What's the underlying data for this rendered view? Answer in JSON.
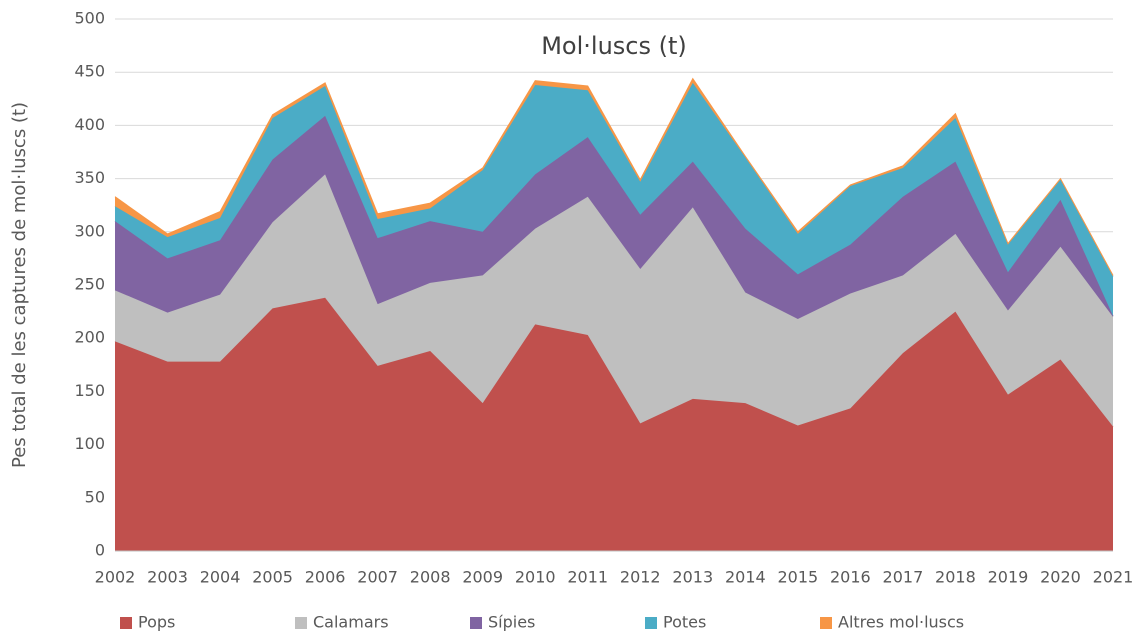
{
  "chart_data": {
    "type": "stacked_area",
    "title": "Mol·luscs (t)",
    "y_label": "Pes total de les captures de mol·luscs (t)",
    "categories": [
      "2002",
      "2003",
      "2004",
      "2005",
      "2006",
      "2007",
      "2008",
      "2009",
      "2010",
      "2011",
      "2012",
      "2013",
      "2014",
      "2015",
      "2016",
      "2017",
      "2018",
      "2019",
      "2020",
      "2021"
    ],
    "series": [
      {
        "name": "Pops",
        "color": "#c0504d",
        "values": [
          197,
          178,
          178,
          228,
          238,
          174,
          188,
          139,
          213,
          203,
          120,
          143,
          139,
          118,
          134,
          186,
          225,
          147,
          180,
          117
        ]
      },
      {
        "name": "Calamars",
        "color": "#bfbfbf",
        "values": [
          48,
          46,
          63,
          81,
          116,
          58,
          64,
          120,
          90,
          130,
          145,
          180,
          104,
          100,
          108,
          73,
          73,
          79,
          106,
          103
        ]
      },
      {
        "name": "Sípies",
        "color": "#8064a2",
        "values": [
          65,
          51,
          51,
          59,
          55,
          62,
          58,
          41,
          51,
          56,
          51,
          43,
          60,
          42,
          46,
          74,
          68,
          36,
          44,
          1
        ]
      },
      {
        "name": "Potes",
        "color": "#4bacc6",
        "values": [
          14,
          20,
          21,
          39,
          28,
          18,
          12,
          58,
          84,
          44,
          31,
          74,
          67,
          38,
          55,
          27,
          41,
          26,
          19,
          37
        ]
      },
      {
        "name": "Altres mol·luscs",
        "color": "#f79646",
        "values": [
          9,
          3,
          6,
          3,
          3,
          5,
          5,
          2,
          4,
          4,
          2,
          4,
          1,
          2,
          1,
          2,
          4,
          1,
          1,
          1
        ]
      }
    ],
    "ylim": [
      0,
      500
    ],
    "yticks": [
      0,
      50,
      100,
      150,
      200,
      250,
      300,
      350,
      400,
      450,
      500
    ],
    "grid": true,
    "legend": "bottom"
  }
}
